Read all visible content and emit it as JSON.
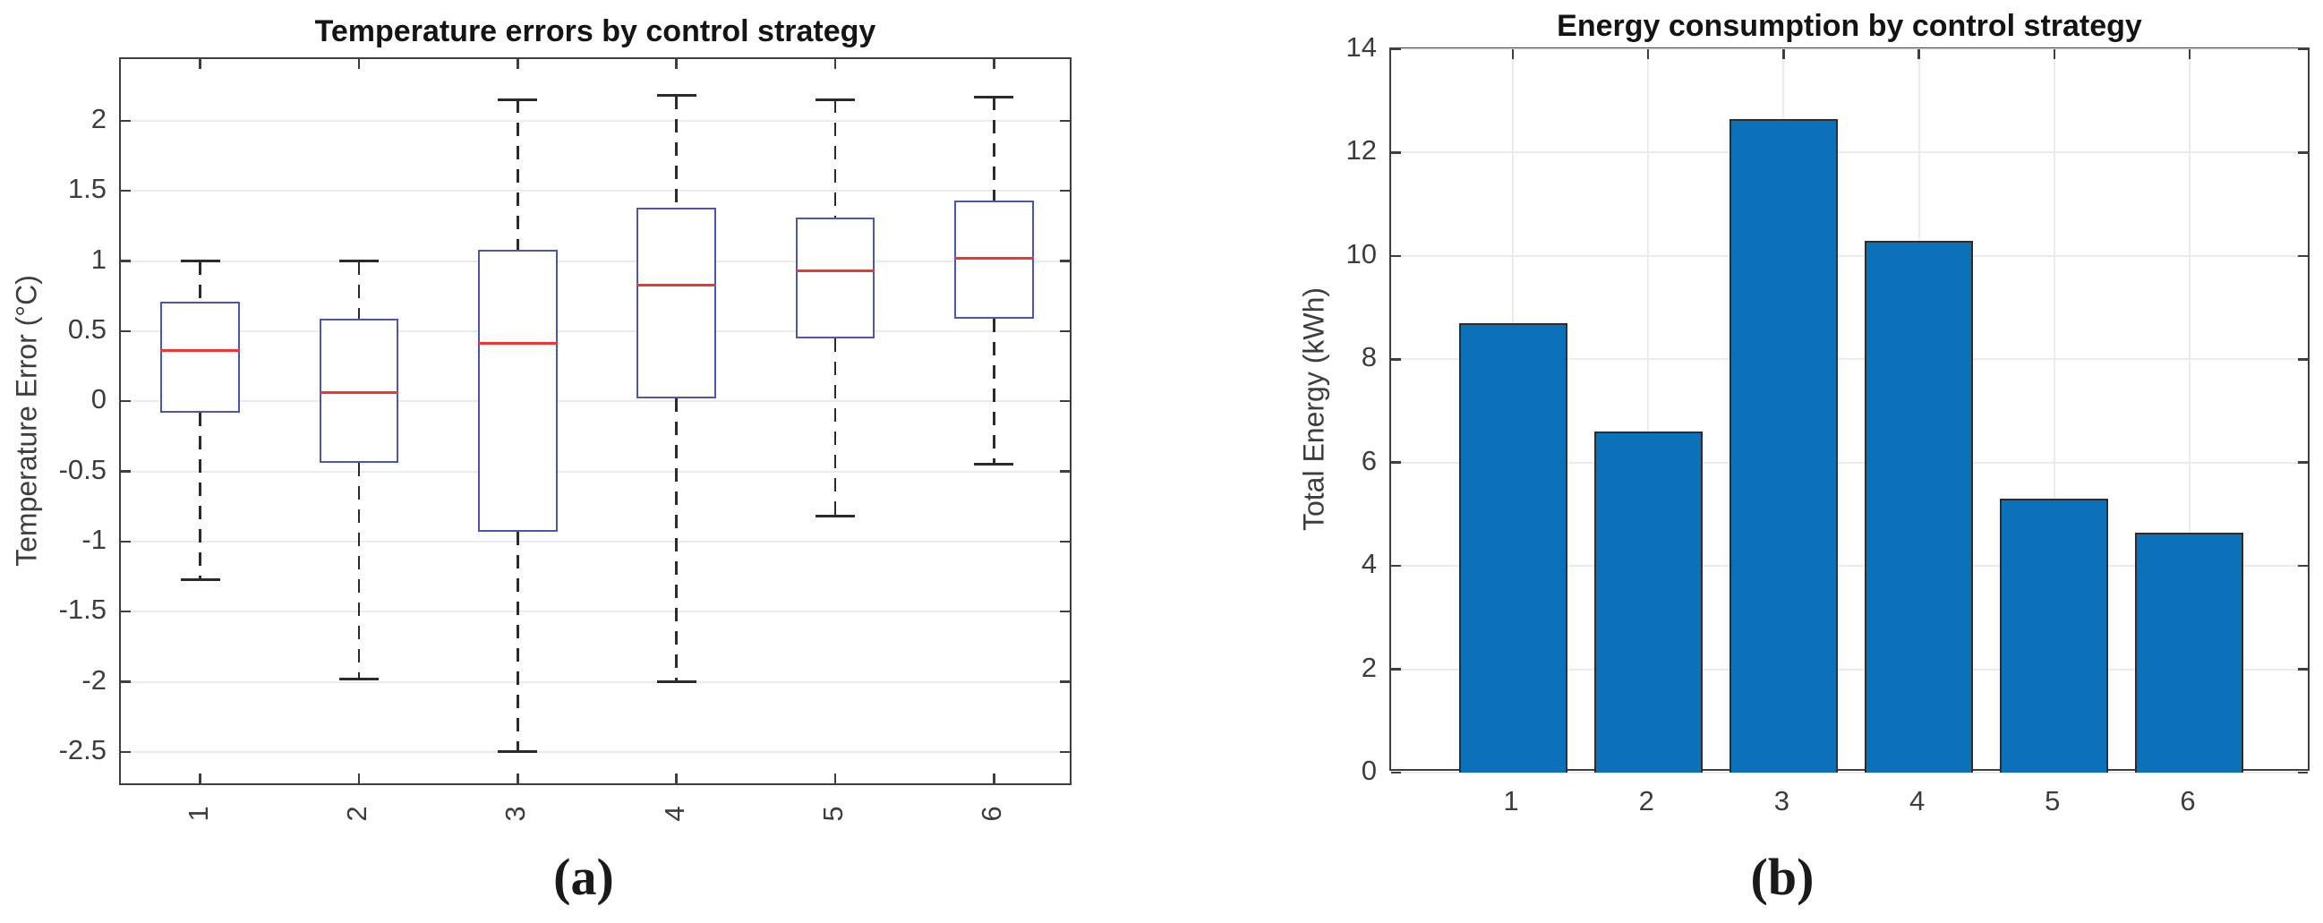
{
  "captions": {
    "a": "(a)",
    "b": "(b)"
  },
  "chart_data": [
    {
      "type": "boxplot",
      "title": "Temperature errors by control strategy",
      "xlabel": "",
      "ylabel": "Temperature Error (°C)",
      "categories": [
        "1",
        "2",
        "3",
        "4",
        "5",
        "6"
      ],
      "yticks": [
        2,
        1.5,
        1,
        0.5,
        0,
        -0.5,
        -1,
        -1.5,
        -2,
        -2.5
      ],
      "ytick_labels": [
        "2",
        "1.5",
        "1",
        "0.5",
        "0",
        "-0.5",
        "-1",
        "-1.5",
        "-2",
        "-2.5"
      ],
      "ylim": [
        -2.75,
        2.44
      ],
      "xlim": [
        0.5,
        6.5
      ],
      "grid": "horizontal",
      "legend": "none",
      "boxes": [
        {
          "category": "1",
          "whisker_low": -1.27,
          "q1": -0.08,
          "median": 0.36,
          "q3": 0.71,
          "whisker_high": 1.0
        },
        {
          "category": "2",
          "whisker_low": -1.98,
          "q1": -0.44,
          "median": 0.06,
          "q3": 0.59,
          "whisker_high": 1.0
        },
        {
          "category": "3",
          "whisker_low": -2.5,
          "q1": -0.93,
          "median": 0.41,
          "q3": 1.08,
          "whisker_high": 2.15
        },
        {
          "category": "4",
          "whisker_low": -2.0,
          "q1": 0.02,
          "median": 0.83,
          "q3": 1.38,
          "whisker_high": 2.18
        },
        {
          "category": "5",
          "whisker_low": -0.82,
          "q1": 0.45,
          "median": 0.93,
          "q3": 1.31,
          "whisker_high": 2.15
        },
        {
          "category": "6",
          "whisker_low": -0.45,
          "q1": 0.59,
          "median": 1.02,
          "q3": 1.43,
          "whisker_high": 2.17
        }
      ],
      "colors": {
        "box_edge": "#4858ac",
        "median": "#ee3732",
        "whisker": "#2b2b2b",
        "grid": "#ebebeb",
        "axis": "#3f3f3f",
        "tick_text": "#3d3d3d",
        "title_text": "#141414"
      }
    },
    {
      "type": "bar",
      "title": "Energy consumption by control strategy",
      "xlabel": "",
      "ylabel": "Total Energy (kWh)",
      "categories": [
        "1",
        "2",
        "3",
        "4",
        "5",
        "6"
      ],
      "values": [
        8.7,
        6.6,
        12.65,
        10.3,
        5.3,
        4.65
      ],
      "yticks": [
        0,
        2,
        4,
        6,
        8,
        10,
        12,
        14
      ],
      "ytick_labels": [
        "0",
        "2",
        "4",
        "6",
        "8",
        "10",
        "12",
        "14"
      ],
      "ylim": [
        0,
        14
      ],
      "xlim": [
        0.1,
        6.9
      ],
      "grid": "both",
      "legend": "none",
      "colors": {
        "bar_fill": "#0b72b9",
        "bar_edge": "#2d2d2d",
        "grid": "#ebebeb",
        "axis": "#3f3f3f",
        "tick_text": "#3d3d3d",
        "title_text": "#141414"
      }
    }
  ]
}
